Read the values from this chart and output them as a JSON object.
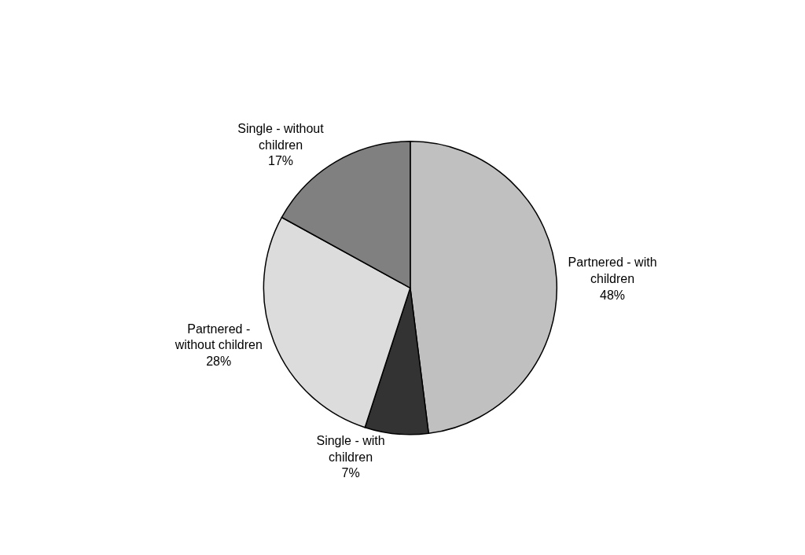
{
  "chart_data": {
    "type": "pie",
    "categories": [
      "Partnered - with children",
      "Single - with children",
      "Partnered - without children",
      "Single - without children"
    ],
    "values": [
      48,
      7,
      28,
      17
    ],
    "value_labels": [
      "48%",
      "7%",
      "28%",
      "17%"
    ],
    "colors": [
      "#c0c0c0",
      "#333333",
      "#dcdcdc",
      "#808080"
    ],
    "legend": false
  }
}
